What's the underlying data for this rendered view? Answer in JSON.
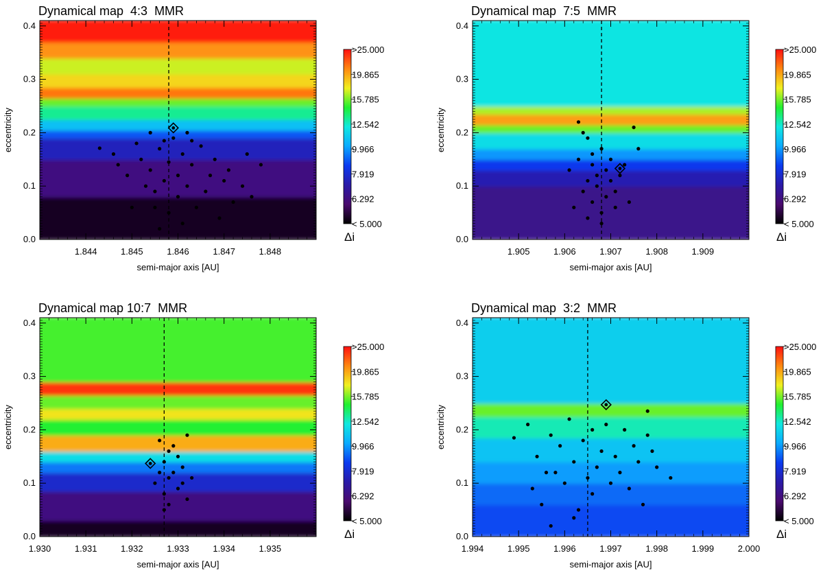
{
  "chart_data": [
    {
      "type": "heatmap",
      "title": "Dynamical map  4:3  MMR",
      "xlabel": "semi-major axis [AU]",
      "ylabel": "eccentricity",
      "xlim": [
        1.843,
        1.849
      ],
      "ylim": [
        0.0,
        0.41
      ],
      "xticks": [
        "1.844",
        "1.845",
        "1.846",
        "1.847",
        "1.848"
      ],
      "yticks": [
        "0.0",
        "0.1",
        "0.2",
        "0.3",
        "0.4"
      ],
      "resonance_a": 1.8458,
      "marked_object": {
        "a": 1.8459,
        "e": 0.209
      },
      "bands": [
        {
          "e_from": 0.0,
          "e_to": 0.08,
          "di": 4.8
        },
        {
          "e_from": 0.08,
          "e_to": 0.15,
          "di": 5.8
        },
        {
          "e_from": 0.15,
          "e_to": 0.19,
          "di": 7.0
        },
        {
          "e_from": 0.19,
          "e_to": 0.205,
          "di": 8.5
        },
        {
          "e_from": 0.205,
          "e_to": 0.225,
          "di": 10.5
        },
        {
          "e_from": 0.225,
          "e_to": 0.25,
          "di": 13.0
        },
        {
          "e_from": 0.25,
          "e_to": 0.265,
          "di": 15.5
        },
        {
          "e_from": 0.265,
          "e_to": 0.285,
          "di": 22.0
        },
        {
          "e_from": 0.285,
          "e_to": 0.31,
          "di": 18.5
        },
        {
          "e_from": 0.31,
          "e_to": 0.34,
          "di": 17.0
        },
        {
          "e_from": 0.34,
          "e_to": 0.37,
          "di": 21.0
        },
        {
          "e_from": 0.37,
          "e_to": 0.41,
          "di": 25.5
        }
      ],
      "points": [
        [
          1.8443,
          0.171
        ],
        [
          1.8446,
          0.16
        ],
        [
          1.8447,
          0.14
        ],
        [
          1.8449,
          0.12
        ],
        [
          1.8451,
          0.18
        ],
        [
          1.8452,
          0.15
        ],
        [
          1.8453,
          0.1
        ],
        [
          1.8454,
          0.13
        ],
        [
          1.8455,
          0.06
        ],
        [
          1.8455,
          0.09
        ],
        [
          1.8456,
          0.17
        ],
        [
          1.8456,
          0.02
        ],
        [
          1.8457,
          0.11
        ],
        [
          1.8458,
          0.145
        ],
        [
          1.8458,
          0.05
        ],
        [
          1.8459,
          0.19
        ],
        [
          1.846,
          0.12
        ],
        [
          1.846,
          0.08
        ],
        [
          1.8461,
          0.16
        ],
        [
          1.8461,
          0.03
        ],
        [
          1.8462,
          0.2
        ],
        [
          1.8462,
          0.1
        ],
        [
          1.8463,
          0.14
        ],
        [
          1.8464,
          0.06
        ],
        [
          1.8465,
          0.175
        ],
        [
          1.8466,
          0.09
        ],
        [
          1.8467,
          0.12
        ],
        [
          1.8468,
          0.15
        ],
        [
          1.8469,
          0.04
        ],
        [
          1.847,
          0.11
        ],
        [
          1.8471,
          0.13
        ],
        [
          1.8472,
          0.07
        ],
        [
          1.8474,
          0.1
        ],
        [
          1.8475,
          0.16
        ],
        [
          1.8476,
          0.08
        ],
        [
          1.8478,
          0.14
        ],
        [
          1.8457,
          0.185
        ],
        [
          1.8454,
          0.2
        ],
        [
          1.8463,
          0.185
        ],
        [
          1.845,
          0.06
        ]
      ]
    },
    {
      "type": "heatmap",
      "title": "Dynamical map  7:5  MMR",
      "xlabel": "semi-major axis [AU]",
      "ylabel": "eccentricity",
      "xlim": [
        1.904,
        1.91
      ],
      "ylim": [
        0.0,
        0.41
      ],
      "xticks": [
        "1.905",
        "1.906",
        "1.907",
        "1.908",
        "1.909"
      ],
      "yticks": [
        "0.0",
        "0.1",
        "0.2",
        "0.3",
        "0.4"
      ],
      "resonance_a": 1.9068,
      "marked_object": {
        "a": 1.9072,
        "e": 0.133
      },
      "bands": [
        {
          "e_from": 0.0,
          "e_to": 0.1,
          "di": 6.0
        },
        {
          "e_from": 0.1,
          "e_to": 0.13,
          "di": 6.8
        },
        {
          "e_from": 0.13,
          "e_to": 0.15,
          "di": 8.0
        },
        {
          "e_from": 0.15,
          "e_to": 0.17,
          "di": 9.5
        },
        {
          "e_from": 0.17,
          "e_to": 0.2,
          "di": 11.5
        },
        {
          "e_from": 0.2,
          "e_to": 0.215,
          "di": 15.5
        },
        {
          "e_from": 0.215,
          "e_to": 0.235,
          "di": 20.5
        },
        {
          "e_from": 0.235,
          "e_to": 0.25,
          "di": 16.5
        },
        {
          "e_from": 0.25,
          "e_to": 0.41,
          "di": 11.8
        }
      ],
      "points": [
        [
          1.9061,
          0.13
        ],
        [
          1.9062,
          0.06
        ],
        [
          1.9063,
          0.22
        ],
        [
          1.9063,
          0.15
        ],
        [
          1.9064,
          0.09
        ],
        [
          1.9065,
          0.11
        ],
        [
          1.9065,
          0.19
        ],
        [
          1.9066,
          0.07
        ],
        [
          1.9066,
          0.14
        ],
        [
          1.9067,
          0.12
        ],
        [
          1.9067,
          0.1
        ],
        [
          1.9068,
          0.17
        ],
        [
          1.9068,
          0.05
        ],
        [
          1.9069,
          0.13
        ],
        [
          1.9069,
          0.08
        ],
        [
          1.907,
          0.15
        ],
        [
          1.907,
          0.11
        ],
        [
          1.9071,
          0.09
        ],
        [
          1.9072,
          0.12
        ],
        [
          1.9073,
          0.14
        ],
        [
          1.9074,
          0.07
        ],
        [
          1.9075,
          0.21
        ],
        [
          1.9076,
          0.17
        ],
        [
          1.9064,
          0.2
        ],
        [
          1.9066,
          0.16
        ],
        [
          1.9068,
          0.03
        ],
        [
          1.9065,
          0.04
        ],
        [
          1.9071,
          0.06
        ]
      ]
    },
    {
      "type": "heatmap",
      "title": "Dynamical map 10:7  MMR",
      "xlabel": "semi-major axis [AU]",
      "ylabel": "eccentricity",
      "xlim": [
        1.93,
        1.936
      ],
      "ylim": [
        0.0,
        0.41
      ],
      "xticks": [
        "1.930",
        "1.931",
        "1.932",
        "1.933",
        "1.934",
        "1.935"
      ],
      "yticks": [
        "0.0",
        "0.1",
        "0.2",
        "0.3",
        "0.4"
      ],
      "resonance_a": 1.9327,
      "marked_object": {
        "a": 1.9324,
        "e": 0.137
      },
      "bands": [
        {
          "e_from": 0.0,
          "e_to": 0.03,
          "di": 4.8
        },
        {
          "e_from": 0.03,
          "e_to": 0.085,
          "di": 5.8
        },
        {
          "e_from": 0.085,
          "e_to": 0.12,
          "di": 7.3
        },
        {
          "e_from": 0.12,
          "e_to": 0.14,
          "di": 9.0
        },
        {
          "e_from": 0.14,
          "e_to": 0.16,
          "di": 11.5
        },
        {
          "e_from": 0.16,
          "e_to": 0.19,
          "di": 20.0
        },
        {
          "e_from": 0.19,
          "e_to": 0.22,
          "di": 14.5
        },
        {
          "e_from": 0.22,
          "e_to": 0.24,
          "di": 18.0
        },
        {
          "e_from": 0.24,
          "e_to": 0.265,
          "di": 15.5
        },
        {
          "e_from": 0.265,
          "e_to": 0.29,
          "di": 24.5
        },
        {
          "e_from": 0.29,
          "e_to": 0.41,
          "di": 15.0
        }
      ],
      "points": [
        [
          1.9325,
          0.1
        ],
        [
          1.9326,
          0.18
        ],
        [
          1.9327,
          0.08
        ],
        [
          1.9327,
          0.14
        ],
        [
          1.9328,
          0.11
        ],
        [
          1.9328,
          0.06
        ],
        [
          1.9329,
          0.17
        ],
        [
          1.9329,
          0.12
        ],
        [
          1.933,
          0.09
        ],
        [
          1.933,
          0.15
        ],
        [
          1.9331,
          0.1
        ],
        [
          1.9331,
          0.13
        ],
        [
          1.9332,
          0.07
        ],
        [
          1.9332,
          0.19
        ],
        [
          1.9333,
          0.11
        ],
        [
          1.9326,
          0.12
        ],
        [
          1.9328,
          0.16
        ],
        [
          1.9327,
          0.05
        ]
      ]
    },
    {
      "type": "heatmap",
      "title": "Dynamical map  3:2  MMR",
      "xlabel": "semi-major axis [AU]",
      "ylabel": "eccentricity",
      "xlim": [
        1.994,
        2.0
      ],
      "ylim": [
        0.0,
        0.41
      ],
      "xticks": [
        "1.994",
        "1.995",
        "1.996",
        "1.997",
        "1.998",
        "1.999",
        "2.000"
      ],
      "yticks": [
        "0.0",
        "0.1",
        "0.2",
        "0.3",
        "0.4"
      ],
      "resonance_a": 1.9965,
      "marked_object": {
        "a": 1.9969,
        "e": 0.247
      },
      "bands": [
        {
          "e_from": 0.0,
          "e_to": 0.06,
          "di": 8.3
        },
        {
          "e_from": 0.06,
          "e_to": 0.1,
          "di": 8.8
        },
        {
          "e_from": 0.1,
          "e_to": 0.14,
          "di": 9.6
        },
        {
          "e_from": 0.14,
          "e_to": 0.185,
          "di": 10.6
        },
        {
          "e_from": 0.185,
          "e_to": 0.225,
          "di": 12.5
        },
        {
          "e_from": 0.225,
          "e_to": 0.25,
          "di": 15.5
        },
        {
          "e_from": 0.25,
          "e_to": 0.41,
          "di": 11.0
        }
      ],
      "points": [
        [
          1.9949,
          0.185
        ],
        [
          1.9952,
          0.21
        ],
        [
          1.9953,
          0.09
        ],
        [
          1.9954,
          0.15
        ],
        [
          1.9955,
          0.06
        ],
        [
          1.9957,
          0.19
        ],
        [
          1.9957,
          0.02
        ],
        [
          1.9958,
          0.12
        ],
        [
          1.9959,
          0.17
        ],
        [
          1.996,
          0.1
        ],
        [
          1.9961,
          0.22
        ],
        [
          1.9962,
          0.14
        ],
        [
          1.9963,
          0.05
        ],
        [
          1.9964,
          0.18
        ],
        [
          1.9965,
          0.11
        ],
        [
          1.9966,
          0.2
        ],
        [
          1.9967,
          0.13
        ],
        [
          1.9968,
          0.16
        ],
        [
          1.9969,
          0.21
        ],
        [
          1.997,
          0.1
        ],
        [
          1.9971,
          0.15
        ],
        [
          1.9972,
          0.12
        ],
        [
          1.9973,
          0.2
        ],
        [
          1.9974,
          0.09
        ],
        [
          1.9975,
          0.17
        ],
        [
          1.9976,
          0.14
        ],
        [
          1.9977,
          0.06
        ],
        [
          1.9978,
          0.19
        ],
        [
          1.9979,
          0.16
        ],
        [
          1.998,
          0.13
        ],
        [
          1.9983,
          0.11
        ],
        [
          1.9978,
          0.235
        ],
        [
          1.9956,
          0.12
        ],
        [
          1.9962,
          0.035
        ],
        [
          1.9966,
          0.08
        ]
      ]
    }
  ],
  "colorbar": {
    "label": "Δi",
    "labels": [
      ">25.000",
      "19.865",
      "15.785",
      "12.542",
      "9.966",
      "7.919",
      "6.292",
      "< 5.000"
    ],
    "stops": [
      "#000000",
      "#4a0a6e",
      "#2a1aa8",
      "#0a3af0",
      "#0aaaff",
      "#10e8e0",
      "#20f030",
      "#f0f020",
      "#ff8810",
      "#ff1010"
    ]
  }
}
